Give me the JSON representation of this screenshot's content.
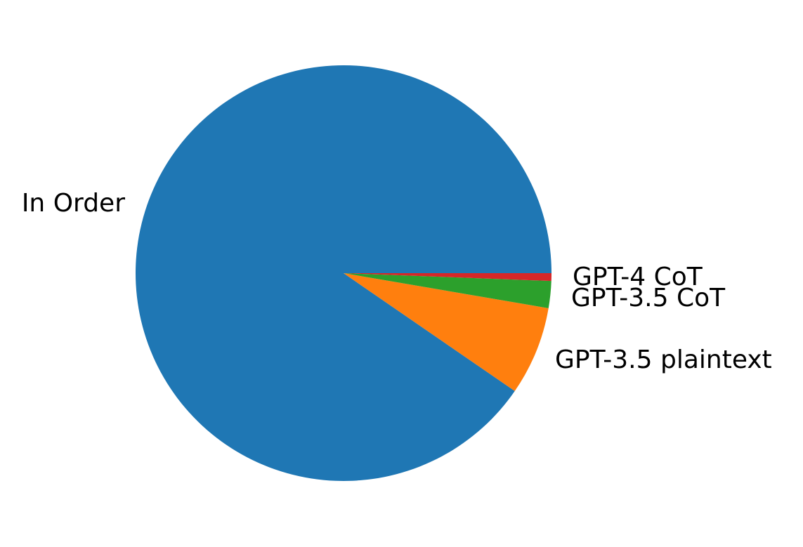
{
  "chart_data": {
    "type": "pie",
    "title": "",
    "start_angle_deg": 0,
    "direction": "counterclockwise",
    "slices": [
      {
        "label": "In Order",
        "value": 90.4,
        "color": "#1f77b4"
      },
      {
        "label": "GPT-3.5 plaintext",
        "value": 6.9,
        "color": "#ff7f0e"
      },
      {
        "label": "GPT-3.5 CoT",
        "value": 2.1,
        "color": "#2ca02c"
      },
      {
        "label": "GPT-4 CoT",
        "value": 0.6,
        "color": "#d62728"
      }
    ]
  }
}
